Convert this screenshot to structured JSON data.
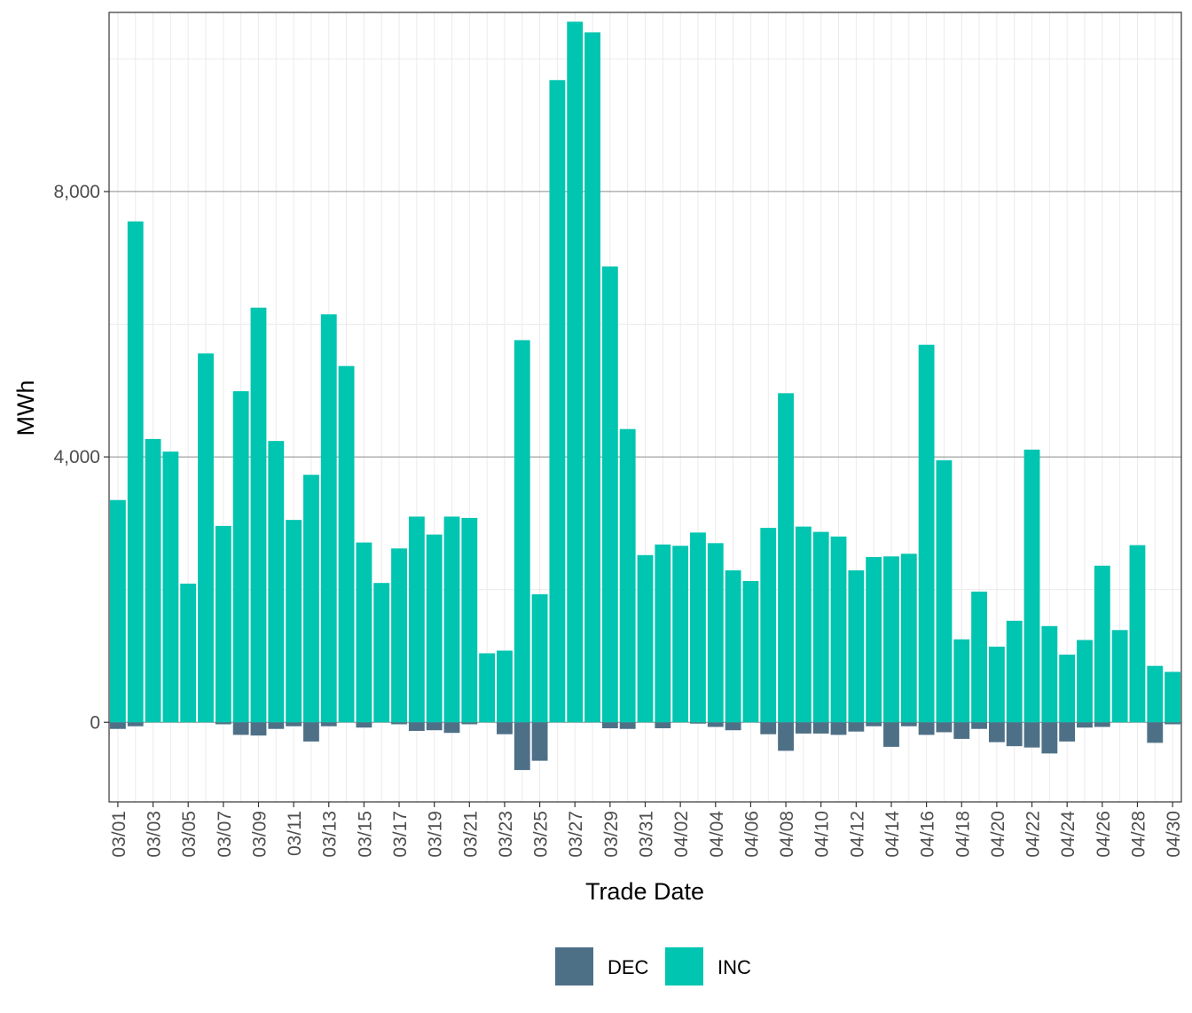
{
  "chart_data": {
    "type": "bar",
    "title": "",
    "xlabel": "Trade Date",
    "ylabel": "MWh",
    "ylim": [
      -1200,
      10700
    ],
    "yticks": [
      0,
      4000,
      8000
    ],
    "ytick_labels": [
      "0",
      "4,000",
      "8,000"
    ],
    "grid": true,
    "legend_position": "bottom",
    "categories": [
      "03/01",
      "03/02",
      "03/03",
      "03/04",
      "03/05",
      "03/06",
      "03/07",
      "03/08",
      "03/09",
      "03/10",
      "03/11",
      "03/12",
      "03/13",
      "03/14",
      "03/15",
      "03/16",
      "03/17",
      "03/18",
      "03/19",
      "03/20",
      "03/21",
      "03/22",
      "03/23",
      "03/24",
      "03/25",
      "03/26",
      "03/27",
      "03/28",
      "03/29",
      "03/30",
      "03/31",
      "04/01",
      "04/02",
      "04/03",
      "04/04",
      "04/05",
      "04/06",
      "04/07",
      "04/08",
      "04/09",
      "04/10",
      "04/11",
      "04/12",
      "04/13",
      "04/14",
      "04/15",
      "04/16",
      "04/17",
      "04/18",
      "04/19",
      "04/20",
      "04/21",
      "04/22",
      "04/23",
      "04/24",
      "04/25",
      "04/26",
      "04/27",
      "04/28",
      "04/29",
      "04/30"
    ],
    "xtick_labels": [
      "03/01",
      "03/03",
      "03/05",
      "03/07",
      "03/09",
      "03/11",
      "03/13",
      "03/15",
      "03/17",
      "03/19",
      "03/21",
      "03/23",
      "03/25",
      "03/27",
      "03/29",
      "03/31",
      "04/02",
      "04/04",
      "04/06",
      "04/08",
      "04/10",
      "04/12",
      "04/14",
      "04/16",
      "04/18",
      "04/20",
      "04/22",
      "04/24",
      "04/26",
      "04/28",
      "04/30"
    ],
    "series": [
      {
        "name": "DEC",
        "color": "#4E7087",
        "values": [
          -100,
          -60,
          0,
          0,
          0,
          0,
          -30,
          -190,
          -200,
          -100,
          -60,
          -290,
          -60,
          0,
          -80,
          0,
          -30,
          -130,
          -120,
          -160,
          -30,
          0,
          -180,
          -720,
          -580,
          0,
          0,
          0,
          -90,
          -100,
          0,
          -90,
          0,
          -20,
          -70,
          -120,
          0,
          -180,
          -430,
          -170,
          -170,
          -190,
          -140,
          -60,
          -370,
          -60,
          -190,
          -150,
          -250,
          -100,
          -300,
          -360,
          -380,
          -470,
          -290,
          -80,
          -70,
          0,
          0,
          -310,
          -30
        ]
      },
      {
        "name": "INC",
        "color": "#00C5B0",
        "values": [
          3350,
          7550,
          4270,
          4080,
          2090,
          5560,
          2960,
          4990,
          6250,
          4240,
          3050,
          3730,
          6150,
          5370,
          2710,
          2100,
          2620,
          3100,
          2830,
          3100,
          3080,
          1040,
          1080,
          5760,
          1930,
          9680,
          10560,
          10400,
          6870,
          4420,
          2520,
          2680,
          2660,
          2860,
          2700,
          2290,
          2130,
          2930,
          4960,
          2950,
          2870,
          2800,
          2290,
          2490,
          2500,
          2540,
          5690,
          3950,
          1250,
          1970,
          1140,
          1530,
          4110,
          1450,
          1020,
          1240,
          2360,
          1390,
          2670,
          850,
          760
        ]
      }
    ]
  }
}
